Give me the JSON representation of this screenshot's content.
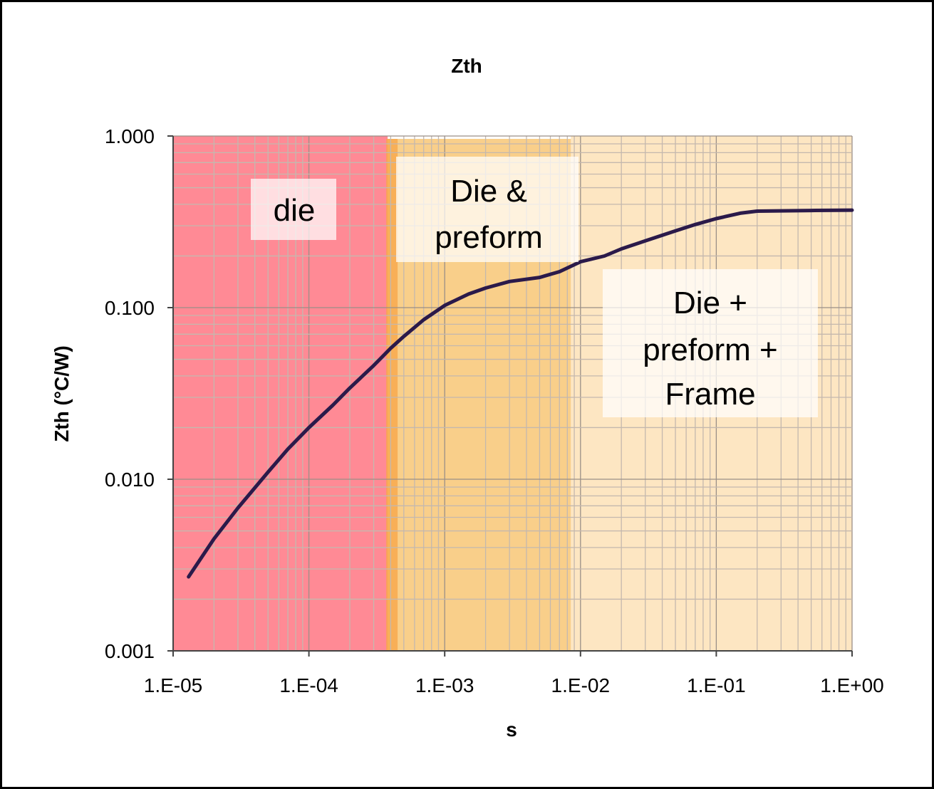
{
  "chart_data": {
    "type": "line",
    "title": "Zth",
    "xlabel": "s",
    "ylabel": "Zth (°C/W)",
    "x_scale": "log",
    "y_scale": "log",
    "xlim": [
      1e-05,
      1
    ],
    "ylim": [
      0.001,
      1
    ],
    "grid": true,
    "legend": "none",
    "x_ticks": [
      "1.E-05",
      "1.E-04",
      "1.E-03",
      "1.E-02",
      "1.E-01",
      "1.E+00"
    ],
    "y_ticks": [
      "0.001",
      "0.010",
      "0.100",
      "1.000"
    ],
    "series": [
      {
        "color": "#2b1a4a",
        "x": [
          1.3e-05,
          2e-05,
          3e-05,
          5e-05,
          7e-05,
          0.0001,
          0.00015,
          0.0002,
          0.0003,
          0.0004,
          0.0005,
          0.0007,
          0.001,
          0.0015,
          0.002,
          0.003,
          0.005,
          0.007,
          0.01,
          0.015,
          0.02,
          0.03,
          0.05,
          0.07,
          0.1,
          0.15,
          0.2,
          0.5,
          1
        ],
        "y": [
          0.0027,
          0.0045,
          0.0068,
          0.011,
          0.015,
          0.02,
          0.027,
          0.034,
          0.046,
          0.058,
          0.068,
          0.085,
          0.103,
          0.12,
          0.13,
          0.142,
          0.15,
          0.162,
          0.185,
          0.2,
          0.22,
          0.245,
          0.28,
          0.305,
          0.33,
          0.355,
          0.365,
          0.368,
          0.37
        ]
      }
    ],
    "regions": [
      {
        "label": "die",
        "x_range": [
          1e-05,
          0.00038
        ],
        "color": "#ff8a95"
      },
      {
        "label": "Die & preform",
        "x_range": [
          0.00038,
          0.0085
        ],
        "color": "#f9cf8a"
      },
      {
        "label": "Die + preform + Frame",
        "x_range": [
          0.0085,
          1
        ],
        "color": "#fde6c2"
      }
    ]
  }
}
